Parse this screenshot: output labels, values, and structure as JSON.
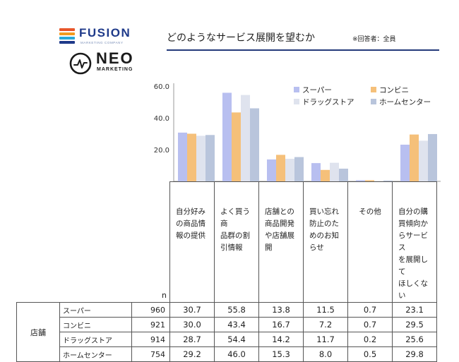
{
  "logos": {
    "fusion": {
      "name": "FUSION",
      "sub": "MARKETING COMPANY",
      "colors": [
        "#e8562a",
        "#f39a1f",
        "#2aa8d8",
        "#1f3a8a"
      ]
    },
    "neo": {
      "name": "NEO",
      "sub": "MARKETING"
    }
  },
  "title": {
    "main": "どのようなサービス展開を望むか",
    "note": "※回答者：全員"
  },
  "chart_data": {
    "type": "bar",
    "title": "どのようなサービス展開を望むか",
    "categories": [
      "自分好みの商品情報の提供",
      "よく買う商品群の割引情報",
      "店舗との商品開発や店舗展開",
      "買い忘れ防止のためのお知らせ",
      "その他",
      "自分の購買傾向からサービスを展開してほしくない"
    ],
    "series": [
      {
        "name": "スーパー",
        "color": "#b8bff0",
        "values": [
          30.7,
          55.8,
          13.8,
          11.5,
          0.7,
          23.1
        ]
      },
      {
        "name": "コンビニ",
        "color": "#f5c07a",
        "values": [
          30.0,
          43.4,
          16.7,
          7.2,
          0.7,
          29.5
        ]
      },
      {
        "name": "ドラッグストア",
        "color": "#dfe3ee",
        "values": [
          28.7,
          54.4,
          14.2,
          11.7,
          0.2,
          25.6
        ]
      },
      {
        "name": "ホームセンター",
        "color": "#b9c5dc",
        "values": [
          29.2,
          46.0,
          15.3,
          8.0,
          0.5,
          29.8
        ]
      }
    ],
    "yticks": [
      "20.0",
      "40.0",
      "60.0"
    ],
    "ylim": [
      0,
      60
    ],
    "legend": "top-right",
    "grid": false
  },
  "table": {
    "n_header": "n",
    "group_label": "店舗",
    "columns": [
      "自分好み\nの商品情\n報の提供",
      "よく買う商\n品群の割\n引情報",
      "店舗との\n商品開発\nや店舗展\n開",
      "買い忘れ\n防止のた\nめのお知\nらせ",
      "その他",
      "自分の購\n買傾向か\nらサービス\nを展開して\nほしくない"
    ],
    "rows": [
      {
        "label": "スーパー",
        "n": "960",
        "values": [
          "30.7",
          "55.8",
          "13.8",
          "11.5",
          "0.7",
          "23.1"
        ]
      },
      {
        "label": "コンビニ",
        "n": "921",
        "values": [
          "30.0",
          "43.4",
          "16.7",
          "7.2",
          "0.7",
          "29.5"
        ]
      },
      {
        "label": "ドラッグストア",
        "n": "914",
        "values": [
          "28.7",
          "54.4",
          "14.2",
          "11.7",
          "0.2",
          "25.6"
        ]
      },
      {
        "label": "ホームセンター",
        "n": "754",
        "values": [
          "29.2",
          "46.0",
          "15.3",
          "8.0",
          "0.5",
          "29.8"
        ]
      }
    ]
  }
}
